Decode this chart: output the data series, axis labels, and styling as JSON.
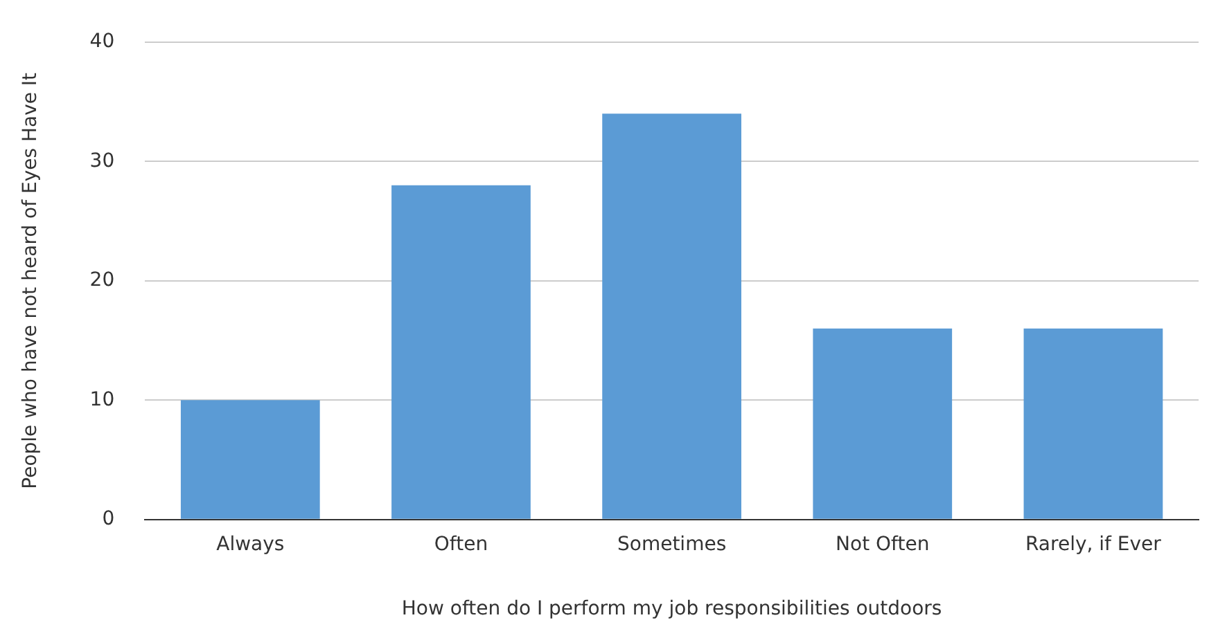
{
  "chart_data": {
    "type": "bar",
    "xlabel": "How often do I perform my job responsibilities outdoors",
    "ylabel": "People who have not heard of Eyes Have It",
    "categories": [
      "Always",
      "Often",
      "Sometimes",
      "Not Often",
      "Rarely, if Ever"
    ],
    "values": [
      10,
      28,
      34,
      16,
      16
    ],
    "color": "#5b9bd5",
    "ylim": [
      0,
      40
    ],
    "yticks": [
      0,
      10,
      20,
      30,
      40
    ],
    "grid": "y",
    "legend": false
  }
}
